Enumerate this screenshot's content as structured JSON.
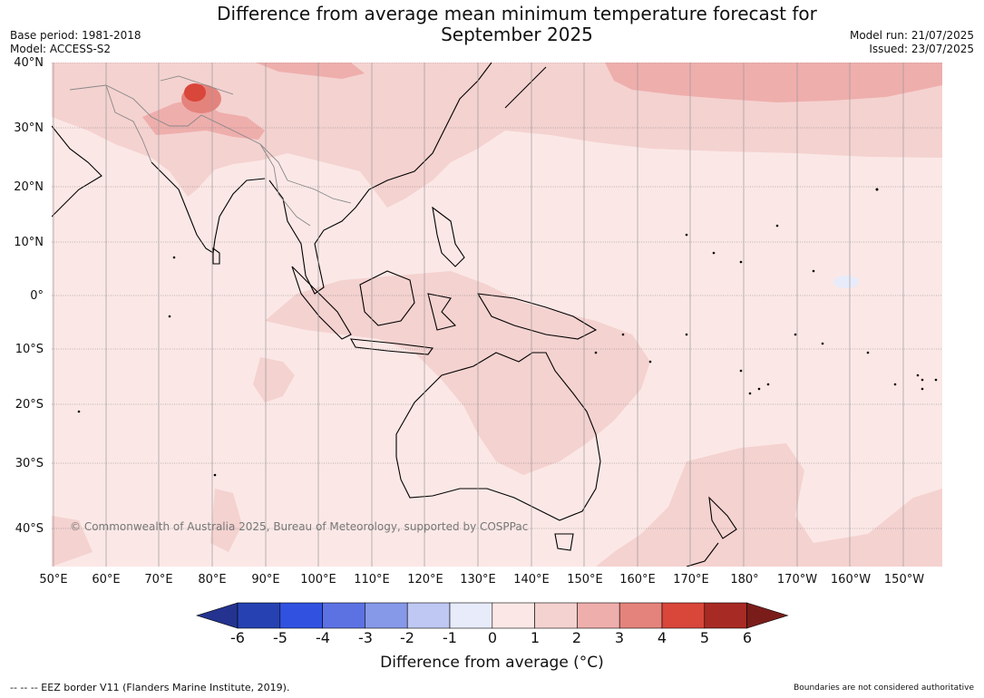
{
  "header": {
    "title_line1": "Difference from average mean minimum temperature forecast for",
    "title_line2": "September 2025",
    "base_period": "Base period: 1981-2018",
    "model": "Model: ACCESS-S2",
    "model_run": "Model run: 21/07/2025",
    "issued": "Issued: 23/07/2025"
  },
  "map": {
    "lat_labels": [
      "40°N",
      "30°N",
      "20°N",
      "10°N",
      "0°",
      "10°S",
      "20°S",
      "30°S",
      "40°S"
    ],
    "lon_labels": [
      "50°E",
      "60°E",
      "70°E",
      "80°E",
      "90°E",
      "100°E",
      "110°E",
      "120°E",
      "130°E",
      "140°E",
      "150°E",
      "160°E",
      "170°E",
      "180°",
      "170°W",
      "160°W",
      "150°W"
    ],
    "copyright": "© Commonwealth of Australia 2025, Bureau of Meteorology, supported by COSPPac",
    "colors": {
      "bin_0_1": "#fbe8e6",
      "bin_1_2": "#f4d2d0",
      "bin_2_3": "#eeaeac",
      "bin_3_4": "#e4837c",
      "bin_4_5": "#d9463a",
      "land_outline": "#000000",
      "border_grey": "#888888"
    }
  },
  "colorbar": {
    "ticks": [
      "-6",
      "-5",
      "-4",
      "-3",
      "-2",
      "-1",
      "0",
      "1",
      "2",
      "3",
      "4",
      "5",
      "6"
    ],
    "colors": [
      "#24338f",
      "#2642b2",
      "#3152e1",
      "#5c72e3",
      "#8698e8",
      "#bfc8f3",
      "#e8ebfa",
      "#fbe8e6",
      "#f4d2d0",
      "#eeaeac",
      "#e4837c",
      "#d9463a",
      "#a82a24",
      "#7a1d1a"
    ],
    "label": "Difference from average (°C)"
  },
  "footer": {
    "eez_note": "--  --  -- EEZ border V11 (Flanders Marine Institute, 2019).",
    "disclaimer": "Boundaries are not considered authoritative"
  }
}
